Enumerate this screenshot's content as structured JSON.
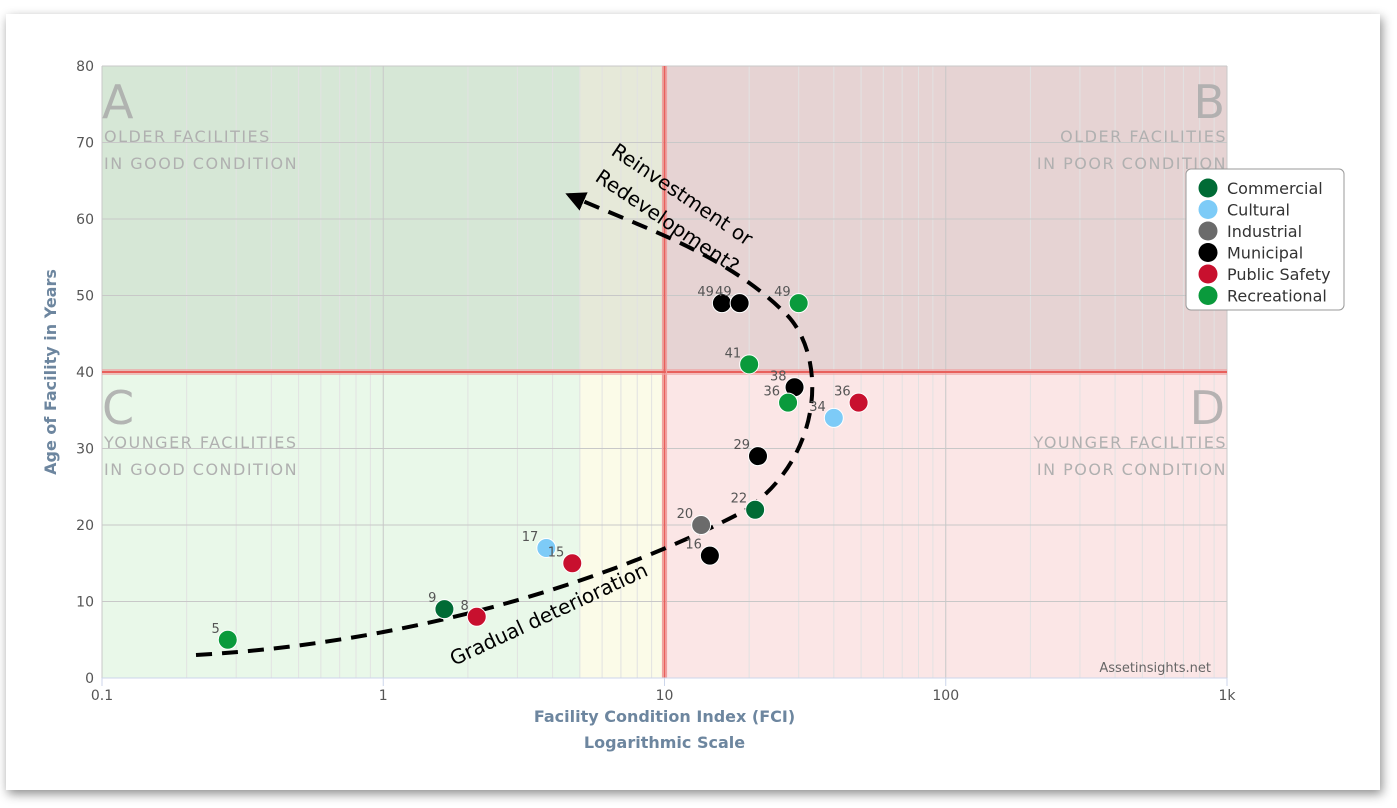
{
  "chart_data": {
    "type": "scatter",
    "xlabel": "Facility Condition Index (FCI)",
    "xlabel_sub": "Logarithmic Scale",
    "ylabel": "Age of Facility in Years",
    "x_scale": "log",
    "xlim": [
      0.1,
      1000
    ],
    "ylim": [
      0,
      80
    ],
    "x_ticks": [
      {
        "v": 0.1,
        "label": "0.1"
      },
      {
        "v": 1,
        "label": "1"
      },
      {
        "v": 10,
        "label": "10"
      },
      {
        "v": 100,
        "label": "100"
      },
      {
        "v": 1000,
        "label": "1k"
      }
    ],
    "y_ticks": [
      0,
      10,
      20,
      30,
      40,
      50,
      60,
      70,
      80
    ],
    "grid": true,
    "legend_position": "top-right",
    "quadrants": {
      "A": {
        "letter": "A",
        "line1": "OLDER FACILITIES",
        "line2": "IN GOOD CONDITION"
      },
      "B": {
        "letter": "B",
        "line1": "OLDER FACILITIES",
        "line2": "IN POOR CONDITION"
      },
      "C": {
        "letter": "C",
        "line1": "YOUNGER FACILITIES",
        "line2": "IN GOOD CONDITION"
      },
      "D": {
        "letter": "D",
        "line1": "YOUNGER FACILITIES",
        "line2": "IN POOR CONDITION"
      }
    },
    "thresholds": {
      "x": 10,
      "y": 40,
      "caution_x_from": 5
    },
    "annotations": {
      "reinvest_line1": "Reinvestment or",
      "reinvest_line2": "Redevelopment?",
      "gradual": "Gradual deterioration"
    },
    "credit": "Assetinsights.net",
    "series": [
      {
        "name": "Commercial",
        "color": "#006b35",
        "points": [
          {
            "x": 1.65,
            "y": 9,
            "label": "9"
          },
          {
            "x": 21,
            "y": 22,
            "label": "22"
          }
        ]
      },
      {
        "name": "Cultural",
        "color": "#7dcbf7",
        "points": [
          {
            "x": 3.8,
            "y": 17,
            "label": "17"
          },
          {
            "x": 40,
            "y": 34,
            "label": "34"
          }
        ]
      },
      {
        "name": "Industrial",
        "color": "#6b6b6b",
        "points": [
          {
            "x": 13.5,
            "y": 20,
            "label": "20"
          }
        ]
      },
      {
        "name": "Municipal",
        "color": "#000000",
        "points": [
          {
            "x": 14.5,
            "y": 16,
            "label": "16"
          },
          {
            "x": 21.5,
            "y": 29,
            "label": "29"
          },
          {
            "x": 29,
            "y": 38,
            "label": "38"
          },
          {
            "x": 16,
            "y": 49,
            "label": "49"
          },
          {
            "x": 18.5,
            "y": 49,
            "label": "49"
          }
        ]
      },
      {
        "name": "Public Safety",
        "color": "#c8102e",
        "points": [
          {
            "x": 2.15,
            "y": 8,
            "label": "8"
          },
          {
            "x": 4.7,
            "y": 15,
            "label": "15"
          },
          {
            "x": 49,
            "y": 36,
            "label": "36"
          }
        ]
      },
      {
        "name": "Recreational",
        "color": "#0a9a3c",
        "points": [
          {
            "x": 0.28,
            "y": 5,
            "label": "5"
          },
          {
            "x": 27.5,
            "y": 36,
            "label": "36"
          },
          {
            "x": 20,
            "y": 41,
            "label": "41"
          },
          {
            "x": 30,
            "y": 49,
            "label": "49"
          }
        ]
      }
    ]
  }
}
